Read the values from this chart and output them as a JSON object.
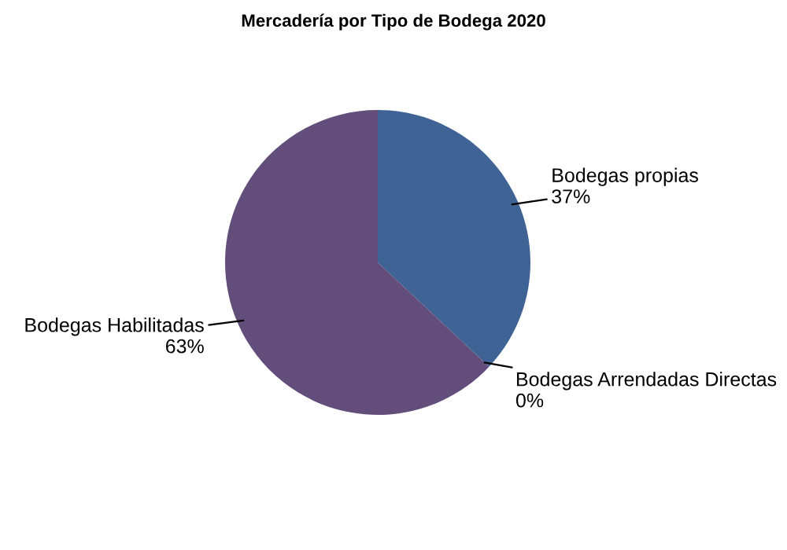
{
  "chart_data": {
    "type": "pie",
    "title": "Mercadería por Tipo de Bodega 2020",
    "categories": [
      "Bodegas propias",
      "Bodegas Arrendadas Directas",
      "Bodegas Habilitadas"
    ],
    "values": [
      37,
      0,
      63
    ],
    "value_labels": [
      "37%",
      "0%",
      "63%"
    ],
    "colors": [
      "#3e6394",
      "#7f9a48",
      "#634d7a"
    ]
  }
}
